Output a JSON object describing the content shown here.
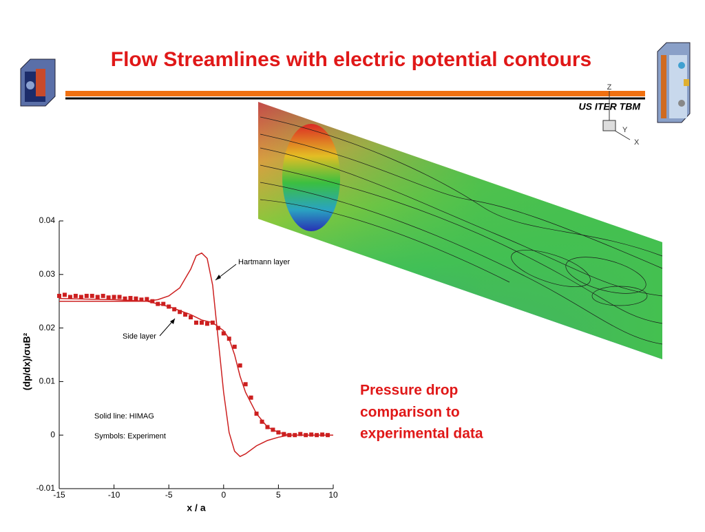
{
  "header": {
    "title": "Flow Streamlines with electric potential contours",
    "subtitle": "US ITER TBM"
  },
  "triad": {
    "z": "Z",
    "y": "Y",
    "x": "X"
  },
  "caption": [
    "Pressure drop",
    "comparison to",
    "experimental data"
  ],
  "chart_data": {
    "type": "line",
    "xlabel": "x / a",
    "ylabel": "(dp/dx)/σuB²",
    "xlim": [
      -15,
      10
    ],
    "ylim": [
      -0.01,
      0.04
    ],
    "xticks": [
      -15,
      -10,
      -5,
      0,
      5,
      10
    ],
    "yticks": [
      -0.01,
      0,
      0.01,
      0.02,
      0.03,
      0.04
    ],
    "annotations": [
      "Hartmann layer",
      "Side layer",
      "Solid line: HIMAG",
      "Symbols:  Experiment"
    ],
    "series": [
      {
        "style": "line",
        "color": "#cc1f1f",
        "x": [
          -15,
          -10,
          -7,
          -6,
          -5,
          -4,
          -3,
          -2.5,
          -2,
          -1.5,
          -1,
          -0.5,
          0,
          0.5,
          1,
          1.5,
          2,
          3,
          4,
          5,
          6,
          10
        ],
        "values": [
          0.025,
          0.025,
          0.025,
          0.0253,
          0.026,
          0.0275,
          0.031,
          0.0335,
          0.034,
          0.033,
          0.028,
          0.018,
          0.008,
          0.0005,
          -0.003,
          -0.004,
          -0.0035,
          -0.002,
          -0.001,
          -0.0004,
          0,
          0
        ]
      },
      {
        "style": "line",
        "color": "#cc1f1f",
        "x": [
          -15,
          -10,
          -7,
          -5,
          -3,
          -2,
          -1,
          0,
          0.5,
          1,
          1.5,
          2,
          3,
          4,
          5,
          6,
          10
        ],
        "values": [
          0.0255,
          0.0253,
          0.025,
          0.024,
          0.0225,
          0.0215,
          0.021,
          0.0195,
          0.018,
          0.015,
          0.011,
          0.008,
          0.004,
          0.0015,
          0.0005,
          0,
          0
        ]
      },
      {
        "style": "marker",
        "color": "#cc1f1f",
        "x": [
          -15,
          -14.5,
          -14,
          -13.5,
          -13,
          -12.5,
          -12,
          -11.5,
          -11,
          -10.5,
          -10,
          -9.5,
          -9,
          -8.5,
          -8,
          -7.5,
          -7,
          -6.5,
          -6,
          -5.5,
          -5,
          -4.5,
          -4,
          -3.5,
          -3,
          -2.5,
          -2,
          -1.5,
          -1,
          -0.5,
          0,
          0.5,
          1,
          1.5,
          2,
          2.5,
          3,
          3.5,
          4,
          4.5,
          5,
          5.5,
          6,
          6.5,
          7,
          7.5,
          8,
          8.5,
          9,
          9.5
        ],
        "values": [
          0.026,
          0.0262,
          0.0258,
          0.026,
          0.0258,
          0.026,
          0.026,
          0.0258,
          0.026,
          0.0257,
          0.0258,
          0.0258,
          0.0255,
          0.0256,
          0.0255,
          0.0253,
          0.0254,
          0.025,
          0.0245,
          0.0245,
          0.024,
          0.0235,
          0.023,
          0.0225,
          0.022,
          0.021,
          0.021,
          0.0208,
          0.021,
          0.02,
          0.019,
          0.018,
          0.0165,
          0.013,
          0.0095,
          0.007,
          0.004,
          0.0025,
          0.0015,
          0.001,
          0.0005,
          0.0002,
          0,
          0,
          0.0002,
          0,
          0.0001,
          0,
          0.0001,
          0
        ]
      }
    ]
  }
}
